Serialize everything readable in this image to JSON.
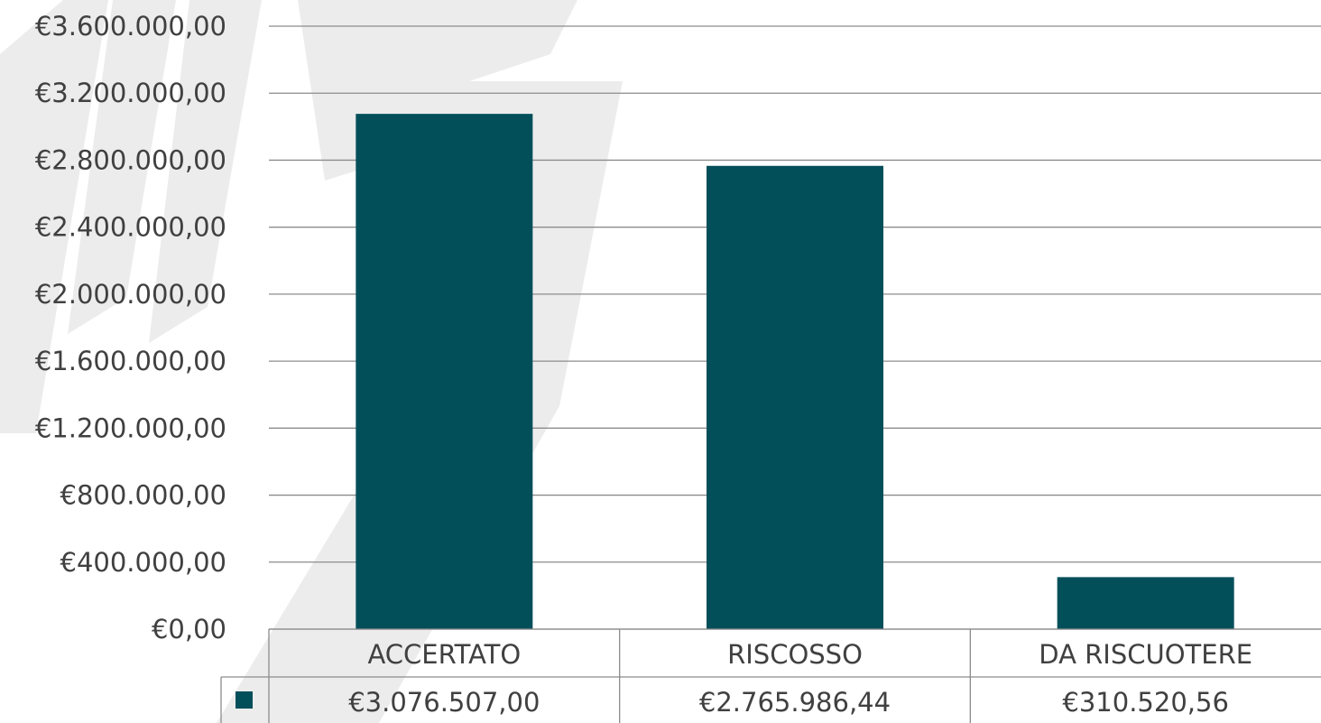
{
  "chart_data": {
    "type": "bar",
    "title": "",
    "xlabel": "",
    "ylabel": "",
    "categories": [
      "ACCERTATO",
      "RISCOSSO",
      "DA RISCUOTERE"
    ],
    "values": [
      3076507.0,
      2765986.44,
      310520.56
    ],
    "value_labels": [
      "€3.076.507,00",
      "€2.765.986,44",
      "€310.520,56"
    ],
    "ylim": [
      0,
      3600000
    ],
    "y_ticks": [
      0,
      400000,
      800000,
      1200000,
      1600000,
      2000000,
      2400000,
      2800000,
      3200000,
      3600000
    ],
    "y_tick_labels": [
      "€0,00",
      "€400.000,00",
      "€800.000,00",
      "€1.200.000,00",
      "€1.600.000,00",
      "€2.000.000,00",
      "€2.400.000,00",
      "€2.800.000,00",
      "€3.200.000,00",
      "€3.600.000,00"
    ],
    "grid": true,
    "legend": "data-table",
    "bar_color": "#024f5a",
    "grid_color": "#8c8c8c",
    "watermark_color": "#ececec"
  }
}
